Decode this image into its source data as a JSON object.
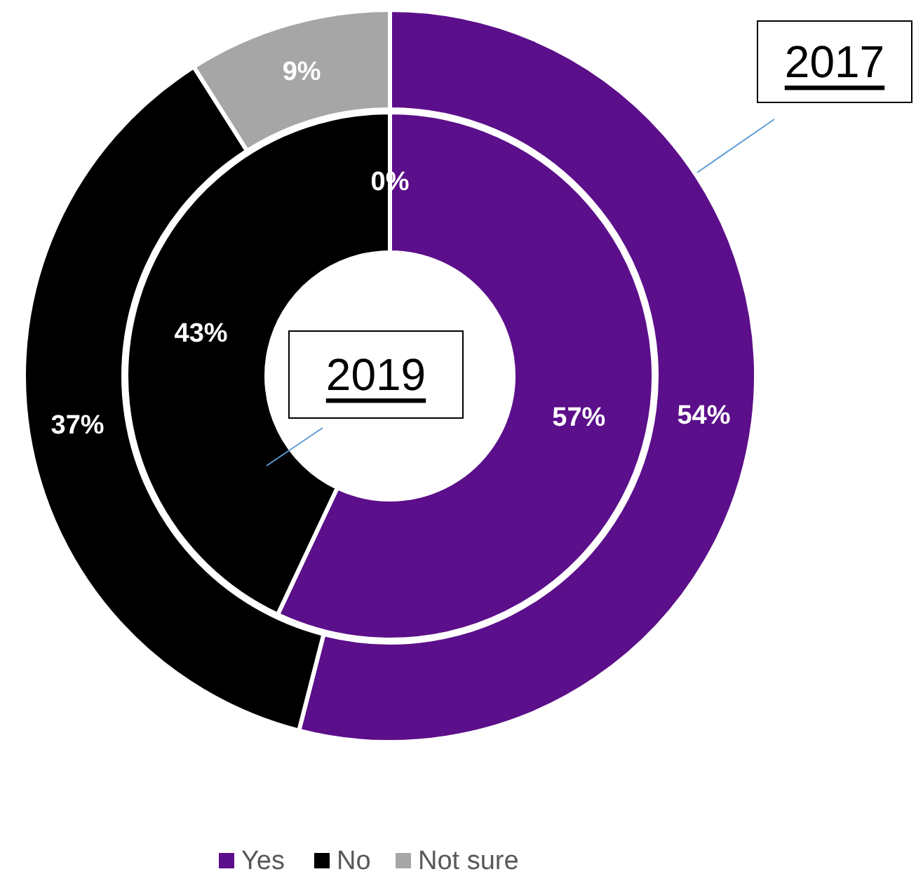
{
  "chart_data": {
    "type": "donut",
    "categories": [
      "Yes",
      "No",
      "Not sure"
    ],
    "colors": [
      "#5b0f8a",
      "#000000",
      "#a6a6a6"
    ],
    "series": [
      {
        "name": "2017",
        "values": [
          54,
          37,
          9
        ],
        "value_labels": [
          "54%",
          "37%",
          "9%"
        ]
      },
      {
        "name": "2019",
        "values": [
          57,
          43,
          0
        ],
        "value_labels": [
          "57%",
          "43%",
          "0%"
        ]
      }
    ],
    "legend": "bottom"
  }
}
